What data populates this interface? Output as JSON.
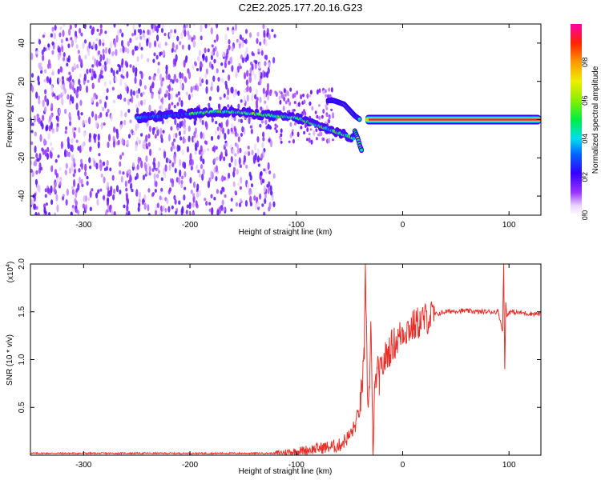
{
  "title": "C2E2.2025.177.20.16.G23",
  "chart_data": [
    {
      "type": "heatmap",
      "title": "C2E2.2025.177.20.16.G23",
      "xlabel": "Height of straight line (km)",
      "ylabel": "Frequency (Hz)",
      "xlim": [
        -350,
        130
      ],
      "ylim": [
        -50,
        50
      ],
      "xticks": [
        -300,
        -200,
        -100,
        0,
        100
      ],
      "yticks": [
        -40,
        -20,
        0,
        20,
        40
      ],
      "colorbar": {
        "label": "Normalized spectral amplitude",
        "range": [
          0.0,
          1.0
        ],
        "ticks": [
          0.0,
          0.2,
          0.4,
          0.6,
          0.8
        ],
        "tick_labels": [
          "0.0",
          "0.2",
          "0.4",
          "0.6",
          "0.8"
        ]
      },
      "features": [
        {
          "name": "noise",
          "x_range": [
            -350,
            -120
          ],
          "freq_range": [
            -50,
            50
          ],
          "amplitude": 0.1
        },
        {
          "name": "trace",
          "x": [
            -250,
            -220,
            -200,
            -180,
            -160,
            -140,
            -120,
            -100,
            -90,
            -80,
            -70,
            -60,
            -50,
            -45
          ],
          "freq": [
            1,
            2,
            3,
            4,
            4,
            3,
            2,
            1,
            -1,
            -3,
            -5,
            -7,
            -9,
            -10
          ],
          "amplitude": 0.3
        },
        {
          "name": "upper-branch",
          "x": [
            -70,
            -65,
            -60,
            -55,
            -50,
            -45,
            -40
          ],
          "freq": [
            10,
            10,
            9,
            8,
            5,
            2,
            0
          ],
          "amplitude": 0.35
        },
        {
          "name": "lower-branch",
          "x": [
            -45,
            -42,
            -40,
            -38
          ],
          "freq": [
            -6,
            -10,
            -14,
            -17
          ],
          "amplitude": 0.3
        },
        {
          "name": "carrier",
          "x_range": [
            -35,
            130
          ],
          "freq": 0,
          "amplitude": 0.95
        }
      ]
    },
    {
      "type": "line",
      "xlabel": "Height of straight line (km)",
      "ylabel": "SNR (10 * v/v)",
      "y_multiplier": "(x10",
      "y_multiplier_exp": "4",
      "xlim": [
        -350,
        130
      ],
      "ylim": [
        0,
        2.0
      ],
      "xticks": [
        -300,
        -200,
        -100,
        0,
        100
      ],
      "yticks": [
        0.5,
        1.0,
        1.5,
        2.0
      ],
      "ytick_labels": [
        "0.5",
        "1.0",
        "1.5",
        "2.0"
      ],
      "color": "#e8302a",
      "series": [
        {
          "x": [
            -350,
            -300,
            -250,
            -200,
            -150,
            -120,
            -100,
            -80,
            -60,
            -50,
            -45,
            -40,
            -36,
            -35,
            -33,
            -31,
            -30,
            -28,
            -26,
            -24,
            -22,
            -20,
            -15,
            -10,
            -5,
            0,
            10,
            20,
            30,
            40,
            50,
            60,
            70,
            80,
            90,
            94,
            95,
            96,
            97,
            98,
            100,
            110,
            120,
            130
          ],
          "y": [
            0.02,
            0.02,
            0.02,
            0.02,
            0.02,
            0.02,
            0.04,
            0.07,
            0.1,
            0.2,
            0.3,
            0.5,
            1.0,
            2.0,
            0.6,
            0.7,
            1.4,
            0.05,
            0.7,
            0.9,
            0.8,
            0.9,
            1.05,
            1.15,
            1.2,
            1.3,
            1.35,
            1.42,
            1.47,
            1.5,
            1.51,
            1.51,
            1.5,
            1.5,
            1.5,
            1.3,
            2.0,
            0.9,
            1.6,
            1.45,
            1.5,
            1.49,
            1.48,
            1.48
          ]
        }
      ]
    }
  ]
}
